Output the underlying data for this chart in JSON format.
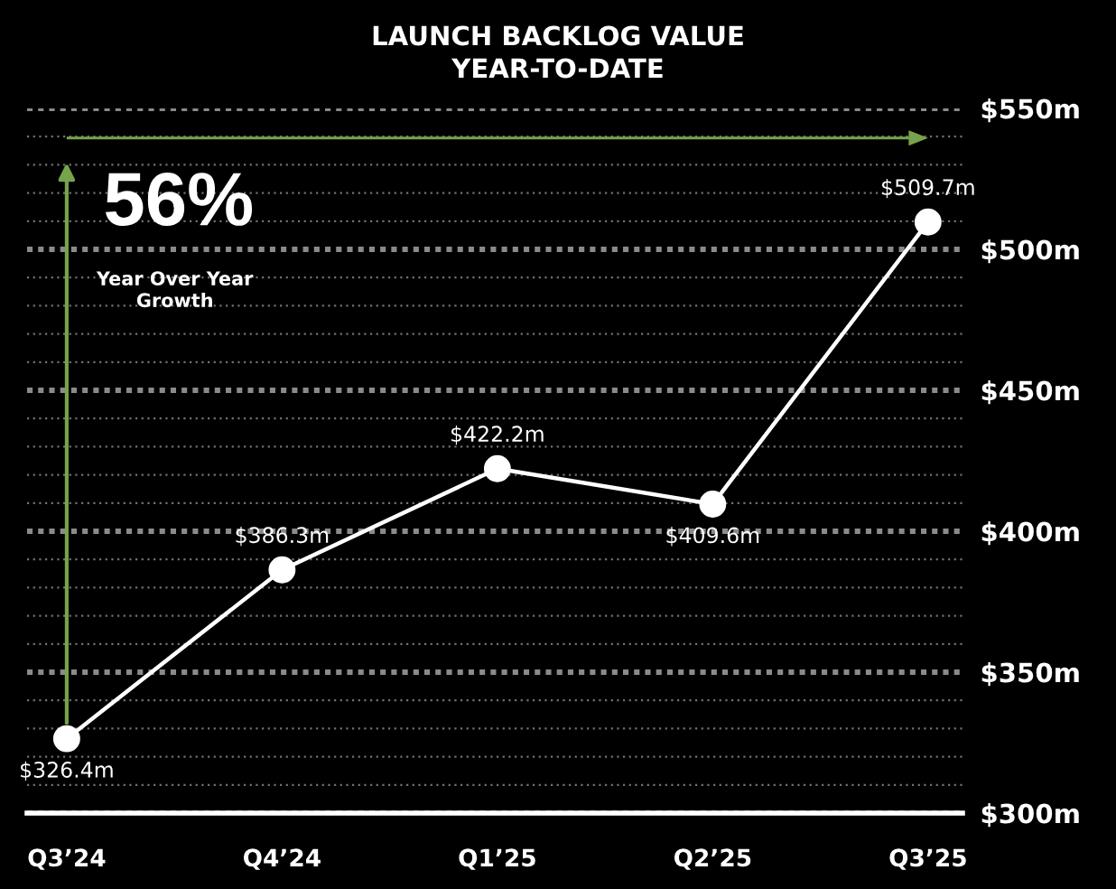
{
  "chart_data": {
    "type": "line",
    "title": "LAUNCH BACKLOG VALUE\nYEAR-TO-DATE",
    "categories": [
      "Q3’24",
      "Q4’24",
      "Q1’25",
      "Q2’25",
      "Q3’25"
    ],
    "values": [
      326.4,
      386.3,
      422.2,
      409.6,
      509.7
    ],
    "color": "#ffffff",
    "value_labels": [
      "$326.4m",
      "$386.3m",
      "$422.2m",
      "$409.6m",
      "$509.7m"
    ],
    "ylim": [
      300,
      550
    ],
    "yticks": [
      {
        "value": 300,
        "label": "$300m"
      },
      {
        "value": 310,
        "label": null
      },
      {
        "value": 320,
        "label": null
      },
      {
        "value": 330,
        "label": null
      },
      {
        "value": 340,
        "label": null
      },
      {
        "value": 350,
        "label": "$350m"
      },
      {
        "value": 360,
        "label": null
      },
      {
        "value": 370,
        "label": null
      },
      {
        "value": 380,
        "label": null
      },
      {
        "value": 390,
        "label": null
      },
      {
        "value": 400,
        "label": "$400m"
      },
      {
        "value": 410,
        "label": null
      },
      {
        "value": 420,
        "label": null
      },
      {
        "value": 430,
        "label": null
      },
      {
        "value": 440,
        "label": null
      },
      {
        "value": 450,
        "label": "$450m"
      },
      {
        "value": 460,
        "label": null
      },
      {
        "value": 470,
        "label": null
      },
      {
        "value": 480,
        "label": null
      },
      {
        "value": 490,
        "label": null
      },
      {
        "value": 500,
        "label": "$500m"
      },
      {
        "value": 510,
        "label": null
      },
      {
        "value": 520,
        "label": null
      },
      {
        "value": 530,
        "label": null
      },
      {
        "value": 540,
        "label": null
      },
      {
        "value": 550,
        "label": "$550m"
      }
    ],
    "grid": "y",
    "marker": "circle",
    "line_style": "solid",
    "annotations": [
      "56%",
      "Year Over Year\nGrowth"
    ]
  }
}
